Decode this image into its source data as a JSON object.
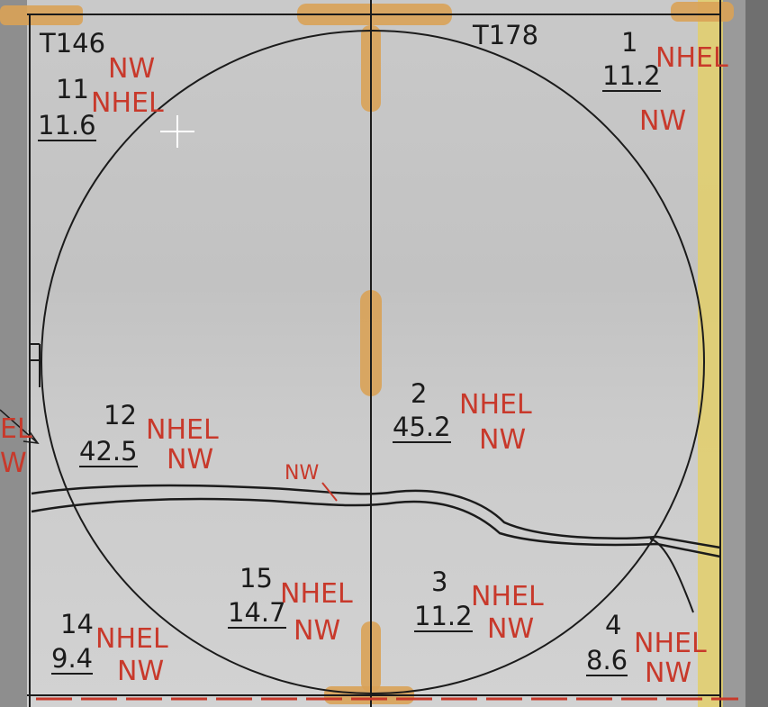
{
  "sections": [
    {
      "id": "T146"
    },
    {
      "id": "T178"
    }
  ],
  "parcels": [
    {
      "number": "1",
      "acres": "11.2",
      "class_1": "NHEL",
      "class_2": "NW"
    },
    {
      "number": "11",
      "acres": "11.6",
      "class_1": "NHEL",
      "class_2": "NW"
    },
    {
      "number": "12",
      "acres": "42.5",
      "class_1": "NHEL",
      "class_2": "NW"
    },
    {
      "number": "2",
      "acres": "45.2",
      "class_1": "NHEL",
      "class_2": "NW"
    },
    {
      "number": "15",
      "acres": "14.7",
      "class_1": "NHEL",
      "class_2": "NW"
    },
    {
      "number": "3",
      "acres": "11.2",
      "class_1": "NHEL",
      "class_2": "NW"
    },
    {
      "number": "14",
      "acres": "9.4",
      "class_1": "NHEL",
      "class_2": "NW"
    },
    {
      "number": "4",
      "acres": "8.6",
      "class_1": "NHEL",
      "class_2": "NW"
    }
  ],
  "annotations": {
    "road_label": "NW",
    "edge_label_1": "EL",
    "edge_label_2": "W"
  },
  "colors": {
    "ink": "#1b1b1b",
    "red_ink": "#c8392b",
    "tape": "#d9a257",
    "highlight": "#e3cf6a"
  }
}
